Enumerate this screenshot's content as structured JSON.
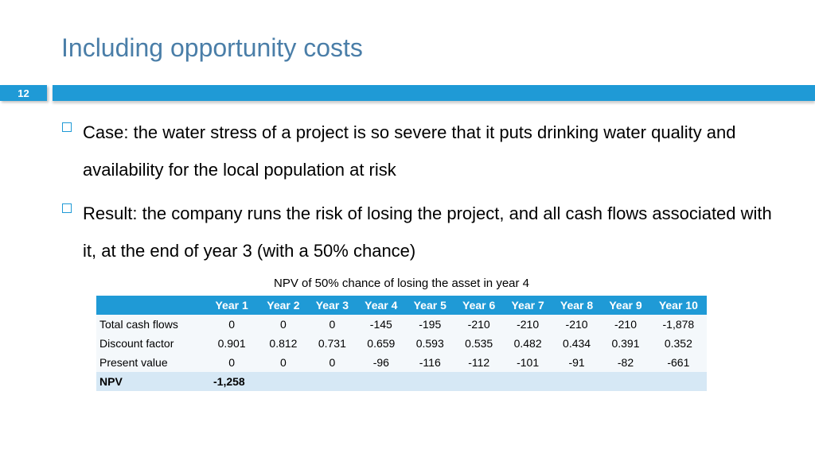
{
  "slide": {
    "title": "Including opportunity costs",
    "number": "12"
  },
  "bullets": [
    "Case: the water stress of a project is so severe that it puts drinking water quality and availability for the local population at risk",
    "Result: the company runs the risk of losing the project, and all cash flows associated with it, at the end of year 3 (with a 50% chance)"
  ],
  "table": {
    "title": "NPV of 50% chance of losing the asset in year 4",
    "headers": [
      "",
      "Year 1",
      "Year 2",
      "Year 3",
      "Year 4",
      "Year 5",
      "Year 6",
      "Year 7",
      "Year 8",
      "Year 9",
      "Year 10"
    ],
    "rows": [
      {
        "label": "Total cash flows",
        "values": [
          "0",
          "0",
          "0",
          "-145",
          "-195",
          "-210",
          "-210",
          "-210",
          "-210",
          "-1,878"
        ]
      },
      {
        "label": "Discount factor",
        "values": [
          "0.901",
          "0.812",
          "0.731",
          "0.659",
          "0.593",
          "0.535",
          "0.482",
          "0.434",
          "0.391",
          "0.352"
        ]
      },
      {
        "label": "Present value",
        "values": [
          "0",
          "0",
          "0",
          "-96",
          "-116",
          "-112",
          "-101",
          "-91",
          "-82",
          "-661"
        ]
      }
    ],
    "npv": {
      "label": "NPV",
      "value": "-1,258"
    }
  }
}
